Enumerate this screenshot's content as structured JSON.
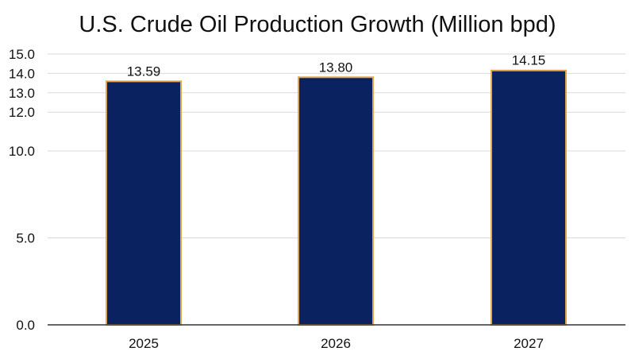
{
  "chart_data": {
    "type": "bar",
    "title": "U.S. Crude Oil Production Growth (Million bpd)",
    "xlabel": "",
    "ylabel": "",
    "categories": [
      "2025",
      "2026",
      "2027"
    ],
    "values": [
      13.59,
      13.8,
      14.15
    ],
    "value_labels": [
      "13.59",
      "13.80",
      "14.15"
    ],
    "y_ticks": [
      0,
      5,
      10,
      12,
      13,
      14,
      15
    ],
    "y_tick_labels": [
      "0.0",
      "5.0",
      "10.0",
      "12.0",
      "13.0",
      "14.0",
      "15.0"
    ],
    "ylim": [
      0,
      15
    ],
    "y_scale": "piecewise-linear: 0 to 10 compressed, 10 to 15 expanded",
    "grid": "horizontal",
    "legend": "none",
    "colors": {
      "bar_fill": "#0b2260",
      "bar_outline": "#e3a54a",
      "gridline": "#d9d9d9",
      "axis": "#333333",
      "text": "#111111"
    }
  }
}
